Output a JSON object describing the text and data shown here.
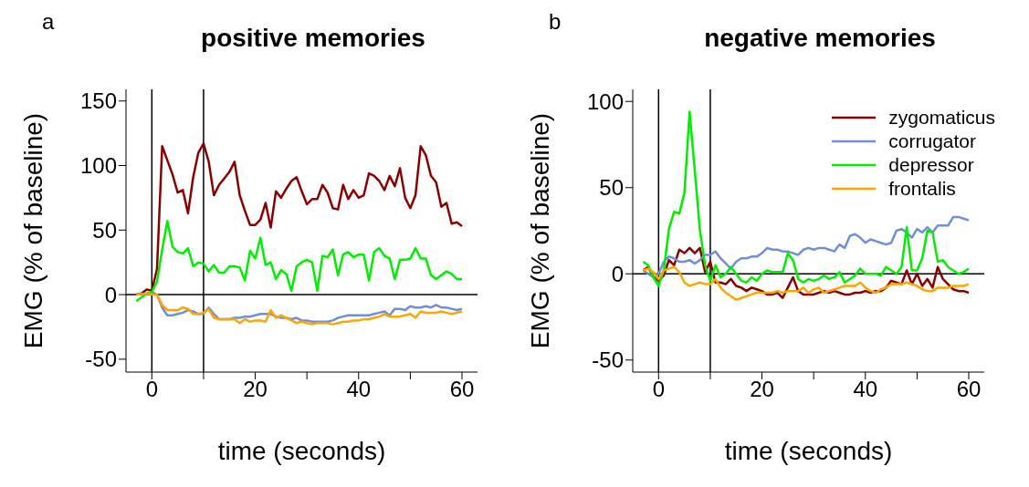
{
  "chart_data": [
    {
      "type": "line",
      "title": "positive memories",
      "xlabel": "time (seconds)",
      "ylabel": "EMG (% of baseline)",
      "annotations": [
        "a"
      ],
      "x": [
        -3,
        -2,
        -1,
        0,
        1,
        2,
        3,
        4,
        5,
        6,
        7,
        8,
        9,
        10,
        11,
        12,
        13,
        14,
        15,
        16,
        17,
        18,
        19,
        20,
        21,
        22,
        23,
        24,
        25,
        26,
        27,
        28,
        29,
        30,
        31,
        32,
        33,
        34,
        35,
        36,
        37,
        38,
        39,
        40,
        41,
        42,
        43,
        44,
        45,
        46,
        47,
        48,
        49,
        50,
        51,
        52,
        53,
        54,
        55,
        56,
        57,
        58,
        59,
        60
      ],
      "xlim": [
        -5,
        63
      ],
      "xticks": [
        0,
        {
          "value": 10,
          "label": null
        },
        20,
        {
          "value": 30,
          "label": null
        },
        40,
        {
          "value": 50,
          "label": null
        },
        60
      ],
      "ylim": [
        -60,
        159
      ],
      "yticks": [
        -50,
        0,
        50,
        100,
        150
      ],
      "ref_lines": [
        {
          "axis": "x",
          "value": 0,
          "color": "#000000"
        },
        {
          "axis": "x",
          "value": 10,
          "color": "#000000"
        },
        {
          "axis": "y",
          "value": 0,
          "color": "#000000"
        }
      ],
      "series": [
        {
          "color": "#8b0000",
          "values": [
            0,
            1,
            4,
            3,
            20,
            115,
            104,
            93,
            79,
            81,
            63,
            91,
            110,
            117,
            103,
            77,
            85,
            90,
            95,
            103,
            77,
            65,
            54,
            54,
            58,
            71,
            52,
            80,
            75,
            82,
            88,
            91,
            80,
            70,
            74,
            74,
            85,
            79,
            67,
            66,
            85,
            74,
            81,
            75,
            77,
            94,
            92,
            88,
            81,
            92,
            84,
            98,
            75,
            67,
            77,
            115,
            108,
            92,
            87,
            68,
            71,
            55,
            56,
            53
          ]
        },
        {
          "color": "#6f8fd8",
          "values": [
            0,
            1,
            0,
            2,
            0,
            -10,
            -16,
            -16,
            -15,
            -14,
            -12,
            -13,
            -15,
            -15,
            -10,
            -15,
            -19,
            -19,
            -19,
            -18,
            -18,
            -17,
            -17,
            -16,
            -15,
            -15,
            -15,
            -17,
            -18,
            -18,
            -19,
            -18,
            -20,
            -20,
            -21,
            -21,
            -21,
            -21,
            -20,
            -18,
            -17,
            -16,
            -16,
            -16,
            -16,
            -16,
            -15,
            -14,
            -13,
            -16,
            -11,
            -11,
            -12,
            -9,
            -10,
            -10,
            -9,
            -10,
            -8,
            -10,
            -10,
            -11,
            -12,
            -11
          ]
        },
        {
          "color": "#00ee00",
          "values": [
            -5,
            -2,
            1,
            2,
            10,
            35,
            57,
            37,
            33,
            32,
            36,
            22,
            25,
            24,
            18,
            23,
            17,
            17,
            22,
            22,
            21,
            11,
            34,
            28,
            44,
            23,
            25,
            12,
            19,
            16,
            3,
            22,
            25,
            27,
            25,
            3,
            30,
            29,
            35,
            15,
            31,
            33,
            29,
            31,
            31,
            11,
            33,
            36,
            30,
            28,
            12,
            27,
            27,
            28,
            36,
            28,
            28,
            15,
            12,
            15,
            18,
            16,
            12,
            12
          ]
        },
        {
          "color": "#ffa500",
          "values": [
            0,
            0,
            1,
            0,
            0,
            -8,
            -12,
            -12,
            -12,
            -10,
            -11,
            -15,
            -15,
            -14,
            -11,
            -18,
            -19,
            -19,
            -19,
            -19,
            -22,
            -19,
            -21,
            -20,
            -20,
            -21,
            -12,
            -18,
            -16,
            -18,
            -20,
            -22,
            -21,
            -22,
            -23,
            -22,
            -22,
            -22,
            -23,
            -22,
            -21,
            -21,
            -20,
            -20,
            -19,
            -19,
            -18,
            -17,
            -15,
            -17,
            -17,
            -17,
            -16,
            -15,
            -18,
            -13,
            -14,
            -14,
            -14,
            -13,
            -14,
            -15,
            -14,
            -13
          ]
        }
      ]
    },
    {
      "type": "line",
      "title": "negative memories",
      "xlabel": "time (seconds)",
      "ylabel": "EMG (% of baseline)",
      "annotations": [
        "b"
      ],
      "x": [
        -3,
        -2,
        -1,
        0,
        1,
        2,
        3,
        4,
        5,
        6,
        7,
        8,
        9,
        10,
        11,
        12,
        13,
        14,
        15,
        16,
        17,
        18,
        19,
        20,
        21,
        22,
        23,
        24,
        25,
        26,
        27,
        28,
        29,
        30,
        31,
        32,
        33,
        34,
        35,
        36,
        37,
        38,
        39,
        40,
        41,
        42,
        43,
        44,
        45,
        46,
        47,
        48,
        49,
        50,
        51,
        52,
        53,
        54,
        55,
        56,
        57,
        58,
        59,
        60
      ],
      "xlim": [
        -5,
        63
      ],
      "xticks": [
        0,
        {
          "value": 10,
          "label": null
        },
        20,
        {
          "value": 30,
          "label": null
        },
        40,
        {
          "value": 50,
          "label": null
        },
        60
      ],
      "ylim": [
        -57,
        107
      ],
      "yticks": [
        -50,
        0,
        50,
        100
      ],
      "legend": "top right",
      "ref_lines": [
        {
          "axis": "x",
          "value": 0,
          "color": "#000000"
        },
        {
          "axis": "x",
          "value": 10,
          "color": "#000000"
        },
        {
          "axis": "y",
          "value": 0,
          "color": "#000000"
        }
      ],
      "series": [
        {
          "name": "zygomaticus",
          "color": "#8b0000",
          "values": [
            2,
            4,
            -2,
            -4,
            -1,
            8,
            5,
            14,
            12,
            15,
            12,
            15,
            1,
            7,
            -5,
            -5,
            -6,
            -3,
            -7,
            -8,
            -10,
            -8,
            -9,
            -10,
            -12,
            -12,
            -11,
            -14,
            -8,
            -2,
            -10,
            -12,
            -12,
            -12,
            -11,
            -10,
            -11,
            -10,
            -11,
            -12,
            -12,
            -11,
            -11,
            -10,
            -11,
            -10,
            -10,
            -8,
            -4,
            -5,
            -6,
            2,
            -6,
            0,
            -7,
            -3,
            -8,
            4,
            -3,
            -6,
            -9,
            -10,
            -10,
            -11
          ]
        },
        {
          "name": "corrugator",
          "color": "#6f8fd8",
          "values": [
            2,
            0,
            -2,
            0,
            7,
            10,
            9,
            7,
            7,
            8,
            6,
            8,
            11,
            11,
            13,
            9,
            6,
            3,
            7,
            9,
            9,
            10,
            10,
            12,
            15,
            14,
            14,
            13,
            13,
            12,
            11,
            14,
            15,
            14,
            15,
            15,
            14,
            13,
            17,
            15,
            22,
            23,
            21,
            18,
            20,
            19,
            18,
            17,
            18,
            25,
            26,
            24,
            21,
            26,
            24,
            27,
            24,
            28,
            28,
            28,
            33,
            33,
            32,
            31
          ]
        },
        {
          "name": "depressor",
          "color": "#00ee00",
          "values": [
            7,
            5,
            -2,
            -7,
            2,
            26,
            36,
            35,
            47,
            94,
            60,
            25,
            5,
            -4,
            5,
            -2,
            0,
            4,
            0,
            -4,
            -5,
            -2,
            -4,
            0,
            2,
            1,
            1,
            1,
            12,
            8,
            -3,
            -5,
            -3,
            -4,
            -3,
            -1,
            -3,
            -2,
            1,
            -5,
            -3,
            -1,
            3,
            0,
            0,
            0,
            -1,
            4,
            2,
            0,
            4,
            27,
            2,
            2,
            9,
            25,
            24,
            7,
            8,
            4,
            2,
            0,
            1,
            3
          ]
        },
        {
          "name": "frontalis",
          "color": "#ffa500",
          "values": [
            2,
            3,
            1,
            -3,
            2,
            3,
            4,
            1,
            -5,
            -7,
            -6,
            -5,
            -6,
            -6,
            -3,
            -8,
            -11,
            -13,
            -15,
            -14,
            -13,
            -12,
            -11,
            -11,
            -11,
            -11,
            -10,
            -11,
            -10,
            -10,
            -10,
            -8,
            -11,
            -9,
            -8,
            -11,
            -10,
            -9,
            -8,
            -7,
            -7,
            -7,
            -5,
            -8,
            -10,
            -11,
            -9,
            -8,
            -6,
            -6,
            -6,
            -5,
            -6,
            -7,
            -9,
            -10,
            -10,
            -8,
            -8,
            -8,
            -7,
            -7,
            -7,
            -6
          ]
        }
      ]
    }
  ]
}
